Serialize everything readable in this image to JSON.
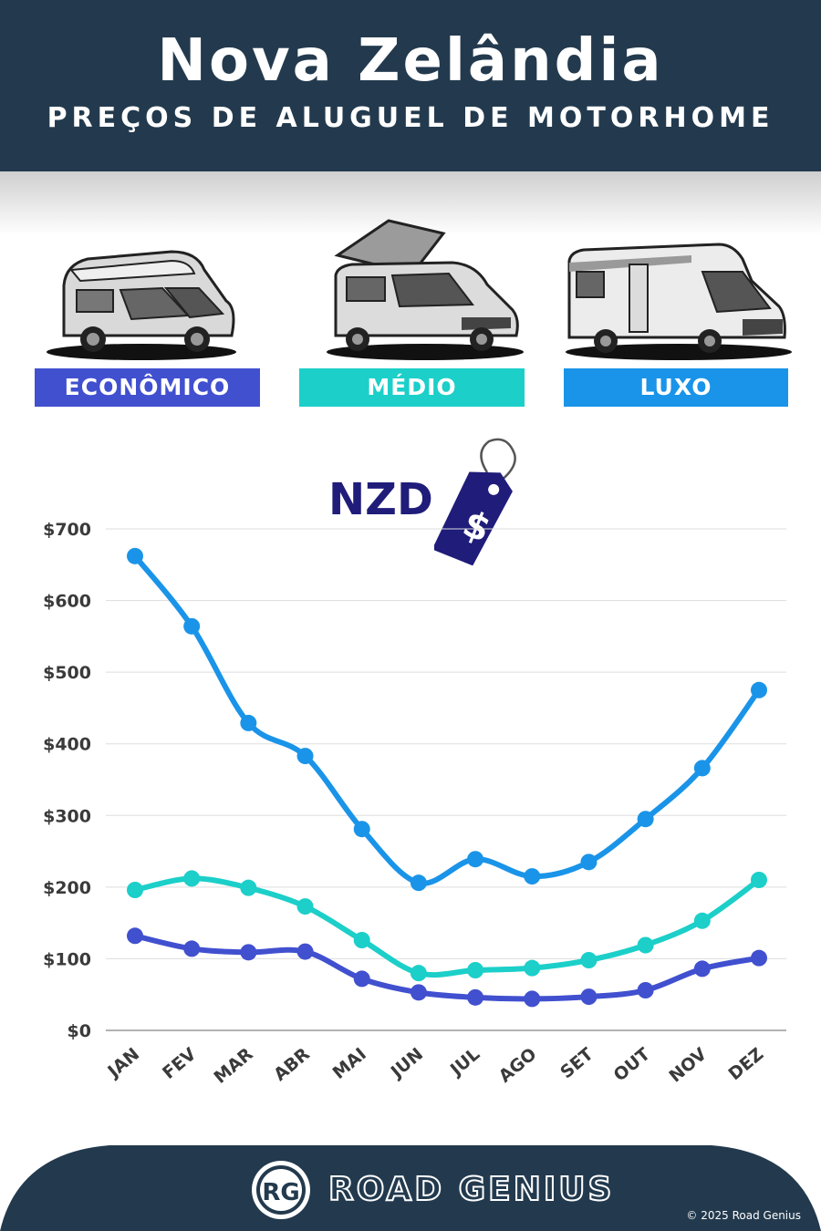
{
  "header": {
    "title": "Nova Zelândia",
    "subtitle": "PREÇOS DE ALUGUEL DE MOTORHOME"
  },
  "categories": [
    {
      "label": "ECONÔMICO",
      "color": "#4150cf"
    },
    {
      "label": "MÉDIO",
      "color": "#1ccfc9"
    },
    {
      "label": "LUXO",
      "color": "#1a94e8"
    }
  ],
  "currency_label": "NZD",
  "tag_symbol": "$",
  "chart_data": {
    "type": "line",
    "x": [
      "JAN",
      "FEV",
      "MAR",
      "ABR",
      "MAI",
      "JUN",
      "JUL",
      "AGO",
      "SET",
      "OUT",
      "NOV",
      "DEZ"
    ],
    "ylim": [
      0,
      700
    ],
    "yticks": [
      "$0",
      "$100",
      "$200",
      "$300",
      "$400",
      "$500",
      "$600",
      "$700"
    ],
    "grid": true,
    "series": [
      {
        "name": "LUXO",
        "color": "#1a94e8",
        "values": [
          662,
          564,
          429,
          383,
          281,
          206,
          239,
          215,
          235,
          295,
          366,
          475
        ]
      },
      {
        "name": "MÉDIO",
        "color": "#1ccfc9",
        "values": [
          196,
          212,
          199,
          173,
          126,
          80,
          84,
          87,
          98,
          119,
          153,
          210
        ]
      },
      {
        "name": "ECONÔMICO",
        "color": "#4150cf",
        "values": [
          132,
          114,
          109,
          110,
          72,
          53,
          46,
          44,
          47,
          56,
          86,
          101
        ]
      }
    ]
  },
  "footer": {
    "brand": "ROAD GENIUS",
    "logo_text": "RG",
    "copyright": "© 2025 Road Genius"
  }
}
